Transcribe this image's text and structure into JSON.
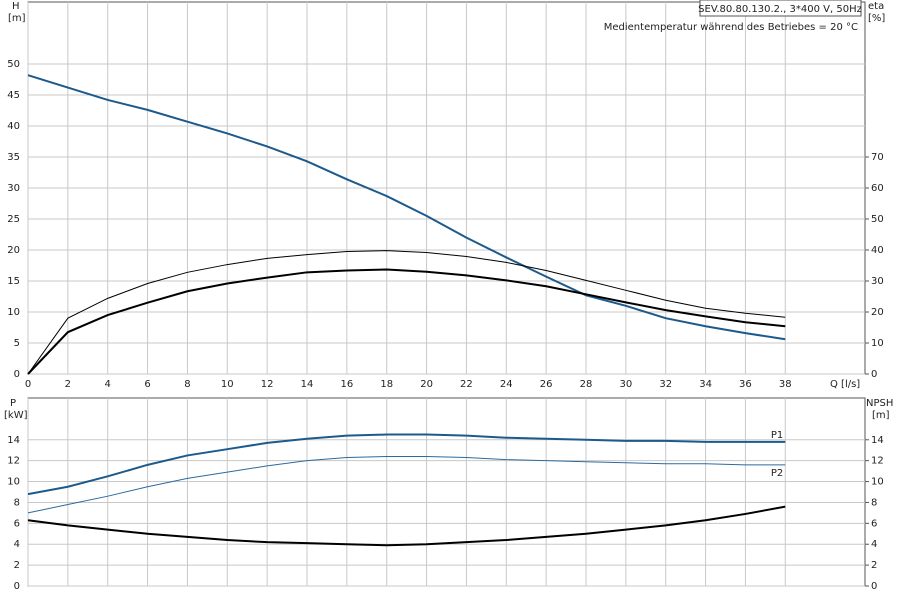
{
  "chart_data": [
    {
      "type": "line",
      "title": "SEV.80.80.130.2., 3*400 V, 50Hz",
      "subtitle": "Medientemperatur während des Betriebes = 20 °C",
      "ylabel": "H",
      "yunit": "[m]",
      "y2label": "eta",
      "y2unit": "[%]",
      "xlabel": "Q [l/s]",
      "x": [
        0,
        2,
        4,
        6,
        8,
        10,
        12,
        14,
        16,
        18,
        20,
        22,
        24,
        26,
        28,
        30,
        32,
        34,
        36,
        38
      ],
      "xlim": [
        0,
        42
      ],
      "xticks": [
        0,
        2,
        4,
        6,
        8,
        10,
        12,
        14,
        16,
        18,
        20,
        22,
        24,
        26,
        28,
        30,
        32,
        34,
        36,
        38
      ],
      "ylim": [
        0,
        60
      ],
      "yticks": [
        0,
        5,
        10,
        15,
        20,
        25,
        30,
        35,
        40,
        45,
        50
      ],
      "y2lim": [
        0,
        120
      ],
      "y2ticks": [
        0,
        10,
        20,
        30,
        40,
        50,
        60,
        70
      ],
      "grid": true,
      "series": [
        {
          "color": "#1d5a8c",
          "linewidth": 2,
          "values": [
            48.2,
            46.2,
            44.2,
            42.6,
            40.7,
            38.8,
            36.7,
            34.3,
            31.4,
            28.7,
            25.5,
            22,
            18.8,
            15.7,
            12.7,
            11,
            9,
            7.7,
            6.6,
            5.6
          ]
        },
        {
          "color": "#000000",
          "linewidth": 1,
          "axis": "y2",
          "values": [
            0,
            18,
            24.4,
            29.2,
            32.8,
            35.3,
            37.3,
            38.5,
            39.5,
            39.8,
            39.2,
            37.9,
            36,
            33.4,
            30.2,
            27,
            23.8,
            21.2,
            19.6,
            18.3
          ]
        },
        {
          "color": "#000000",
          "linewidth": 2,
          "axis": "y2",
          "values": [
            0,
            13.5,
            19,
            23,
            26.7,
            29.2,
            31.1,
            32.8,
            33.4,
            33.7,
            33,
            31.8,
            30.2,
            28.3,
            25.7,
            23.1,
            20.6,
            18.6,
            16.7,
            15.4
          ]
        }
      ]
    },
    {
      "type": "line",
      "ylabel": "P",
      "yunit": "[kW]",
      "y2label": "NPSH",
      "y2unit": "[m]",
      "x": [
        0,
        2,
        4,
        6,
        8,
        10,
        12,
        14,
        16,
        18,
        20,
        22,
        24,
        26,
        28,
        30,
        32,
        34,
        36,
        38
      ],
      "xlim": [
        0,
        42
      ],
      "xticks": [
        0,
        2,
        4,
        6,
        8,
        10,
        12,
        14,
        16,
        18,
        20,
        22,
        24,
        26,
        28,
        30,
        32,
        34,
        36,
        38
      ],
      "ylim": [
        0,
        18
      ],
      "yticks": [
        0,
        2,
        4,
        6,
        8,
        10,
        12,
        14
      ],
      "y2lim": [
        0,
        18
      ],
      "y2ticks": [
        0,
        2,
        4,
        6,
        8,
        10,
        12,
        14
      ],
      "grid": true,
      "series": [
        {
          "name": "P1",
          "color": "#1d5a8c",
          "linewidth": 2,
          "values": [
            8.8,
            9.5,
            10.5,
            11.6,
            12.5,
            13.1,
            13.7,
            14.1,
            14.4,
            14.5,
            14.5,
            14.4,
            14.2,
            14.1,
            14,
            13.9,
            13.9,
            13.8,
            13.8,
            13.8
          ]
        },
        {
          "name": "P2",
          "color": "#2d6a9f",
          "linewidth": 1,
          "values": [
            7,
            7.8,
            8.6,
            9.5,
            10.3,
            10.9,
            11.5,
            12,
            12.3,
            12.4,
            12.4,
            12.3,
            12.1,
            12,
            11.9,
            11.8,
            11.7,
            11.7,
            11.6,
            11.6
          ]
        },
        {
          "color": "#000000",
          "linewidth": 2,
          "axis": "y2",
          "values": [
            6.3,
            5.8,
            5.4,
            5,
            4.7,
            4.4,
            4.2,
            4.1,
            4,
            3.9,
            4,
            4.2,
            4.4,
            4.7,
            5,
            5.4,
            5.8,
            6.3,
            6.9,
            7.6
          ]
        }
      ]
    }
  ]
}
